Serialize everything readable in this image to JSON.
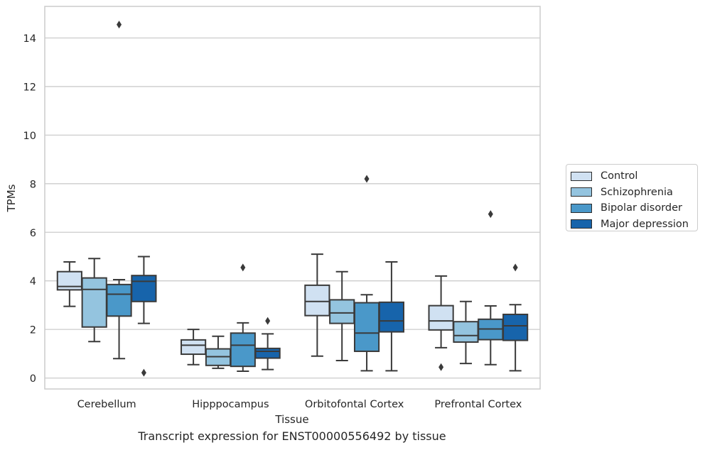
{
  "chart_data": {
    "type": "box",
    "xlabel": "Tissue",
    "ylabel": "TPMs",
    "ylim": [
      -0.45,
      15.3
    ],
    "yticks": [
      0,
      2,
      4,
      6,
      8,
      10,
      12,
      14
    ],
    "grid": "horizontal",
    "legend_position": "right",
    "caption": "Transcript expression for ENST00000556492 by tissue",
    "categories": [
      "Cerebellum",
      "Hipppocampus",
      "Orbitofontal Cortex",
      "Prefrontal Cortex"
    ],
    "series": [
      {
        "name": "Control",
        "color": "#d0e1f2",
        "boxes": [
          {
            "whislo": 2.95,
            "q1": 3.63,
            "med": 3.77,
            "q3": 4.38,
            "whishi": 4.78,
            "fliers": []
          },
          {
            "whislo": 0.55,
            "q1": 0.98,
            "med": 1.35,
            "q3": 1.57,
            "whishi": 2.0,
            "fliers": []
          },
          {
            "whislo": 0.9,
            "q1": 2.57,
            "med": 3.15,
            "q3": 3.82,
            "whishi": 5.1,
            "fliers": []
          },
          {
            "whislo": 1.25,
            "q1": 1.98,
            "med": 2.35,
            "q3": 2.98,
            "whishi": 4.2,
            "fliers": [
              0.45
            ]
          }
        ]
      },
      {
        "name": "Schizophrenia",
        "color": "#94c4df",
        "boxes": [
          {
            "whislo": 1.5,
            "q1": 2.1,
            "med": 3.65,
            "q3": 4.12,
            "whishi": 4.92,
            "fliers": []
          },
          {
            "whislo": 0.4,
            "q1": 0.52,
            "med": 0.88,
            "q3": 1.2,
            "whishi": 1.72,
            "fliers": []
          },
          {
            "whislo": 0.72,
            "q1": 2.25,
            "med": 2.68,
            "q3": 3.22,
            "whishi": 4.38,
            "fliers": []
          },
          {
            "whislo": 0.6,
            "q1": 1.48,
            "med": 1.75,
            "q3": 2.32,
            "whishi": 3.15,
            "fliers": []
          }
        ]
      },
      {
        "name": "Bipolar disorder",
        "color": "#4a98c9",
        "boxes": [
          {
            "whislo": 0.8,
            "q1": 2.55,
            "med": 3.45,
            "q3": 3.85,
            "whishi": 4.05,
            "fliers": [
              14.55
            ]
          },
          {
            "whislo": 0.28,
            "q1": 0.48,
            "med": 1.35,
            "q3": 1.85,
            "whishi": 2.27,
            "fliers": [
              4.55
            ]
          },
          {
            "whislo": 0.3,
            "q1": 1.1,
            "med": 1.85,
            "q3": 3.1,
            "whishi": 3.43,
            "fliers": [
              8.2
            ]
          },
          {
            "whislo": 0.55,
            "q1": 1.58,
            "med": 2.02,
            "q3": 2.42,
            "whishi": 2.97,
            "fliers": [
              6.75
            ]
          }
        ]
      },
      {
        "name": "Major depression",
        "color": "#1764ab",
        "boxes": [
          {
            "whislo": 2.25,
            "q1": 3.15,
            "med": 3.98,
            "q3": 4.22,
            "whishi": 5.0,
            "fliers": [
              0.22
            ]
          },
          {
            "whislo": 0.35,
            "q1": 0.82,
            "med": 1.1,
            "q3": 1.22,
            "whishi": 1.82,
            "fliers": [
              2.35
            ]
          },
          {
            "whislo": 0.3,
            "q1": 1.9,
            "med": 2.35,
            "q3": 3.12,
            "whishi": 4.78,
            "fliers": []
          },
          {
            "whislo": 0.3,
            "q1": 1.55,
            "med": 2.15,
            "q3": 2.62,
            "whishi": 3.02,
            "fliers": [
              4.55
            ]
          }
        ]
      }
    ]
  }
}
